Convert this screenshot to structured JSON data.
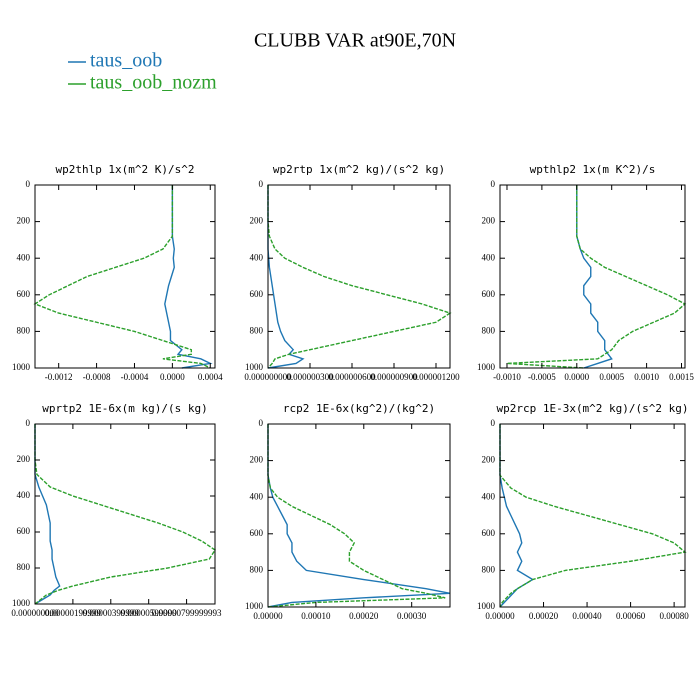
{
  "title": "CLUBB VAR at90E,70N",
  "chart_data": [
    {
      "type": "line",
      "title": "wp2thlp  1x(m^2 K)/s^2",
      "y": [
        0,
        200,
        280,
        350,
        400,
        450,
        500,
        550,
        600,
        650,
        700,
        750,
        800,
        850,
        900,
        925,
        950,
        975,
        1000
      ],
      "ylim": [
        1000,
        0
      ],
      "yticks": [
        0,
        200,
        400,
        600,
        800,
        1000
      ],
      "xlim": [
        -0.00145,
        0.00045
      ],
      "xticks": [
        -0.0012,
        -0.0008,
        -0.0004,
        {
          "value": 0,
          "label": "0.0000"
        },
        0.0004
      ],
      "series": [
        {
          "name": "taus_oob",
          "color": "#1f77b4",
          "values": [
            0,
            0,
            0,
            2e-05,
            1e-05,
            2e-05,
            -1e-05,
            -4e-05,
            -6e-05,
            -8e-05,
            -6e-05,
            -4e-05,
            -2e-05,
            -2e-05,
            0.0001,
            6e-05,
            0.0003,
            0.0004,
            0.0001
          ]
        },
        {
          "name": "taus_oob_nozm",
          "color": "#2ca02c",
          "values": [
            0,
            0,
            0,
            -0.0001,
            -0.0003,
            -0.0006,
            -0.0009,
            -0.0011,
            -0.0013,
            -0.00145,
            -0.0012,
            -0.0008,
            -0.0004,
            -0.0001,
            0.0002,
            0.0002,
            -0.0001,
            0.0003,
            0.0004
          ]
        }
      ]
    },
    {
      "type": "line",
      "title": "wp2rtp  1x(m^2 kg)/(s^2 kg)",
      "y": [
        0,
        200,
        280,
        350,
        400,
        450,
        500,
        550,
        600,
        650,
        700,
        750,
        800,
        850,
        900,
        925,
        950,
        975,
        1000
      ],
      "ylim": [
        1000,
        0
      ],
      "yticks": [
        0,
        200,
        400,
        600,
        800,
        1000
      ],
      "xlim": [
        0,
        1.3e-06
      ],
      "xticks": [
        {
          "value": 0,
          "label": "0.000000000"
        },
        {
          "value": 3e-07,
          "label": "0.000000300"
        },
        {
          "value": 6e-07,
          "label": "0.000000600"
        },
        {
          "value": 9e-07,
          "label": "0.000000900"
        },
        {
          "value": 1.2e-06,
          "label": "0.000001200"
        }
      ],
      "series": [
        {
          "name": "taus_oob",
          "color": "#1f77b4",
          "values": [
            0,
            0,
            0,
            0,
            5e-09,
            1e-08,
            2e-08,
            3e-08,
            4e-08,
            5e-08,
            6e-08,
            7e-08,
            9e-08,
            1.2e-07,
            1.8e-07,
            1.5e-07,
            2.5e-07,
            2e-07,
            0
          ]
        },
        {
          "name": "taus_oob_nozm",
          "color": "#2ca02c",
          "values": [
            0,
            0,
            1e-08,
            5e-08,
            1.2e-07,
            2.5e-07,
            4e-07,
            6e-07,
            8.5e-07,
            1.1e-06,
            1.3e-06,
            1.2e-06,
            9e-07,
            6e-07,
            3e-07,
            1.5e-07,
            5e-08,
            3e-08,
            0
          ]
        }
      ]
    },
    {
      "type": "line",
      "title": "wpthlp2  1x(m K^2)/s",
      "y": [
        0,
        200,
        280,
        350,
        400,
        450,
        500,
        550,
        600,
        650,
        700,
        750,
        800,
        850,
        900,
        925,
        950,
        975,
        1000
      ],
      "ylim": [
        1000,
        0
      ],
      "yticks": [
        0,
        200,
        400,
        600,
        800,
        1000
      ],
      "xlim": [
        -0.0011,
        0.00155
      ],
      "xticks": [
        {
          "value": -0.001,
          "label": "-0.0010"
        },
        -0.0005,
        {
          "value": 0,
          "label": "0.0000"
        },
        0.0005,
        {
          "value": 0.001,
          "label": "0.0010"
        },
        0.0015
      ],
      "series": [
        {
          "name": "taus_oob",
          "color": "#1f77b4",
          "values": [
            0,
            0,
            0,
            5e-05,
            0.0001,
            0.0002,
            0.0002,
            0.0001,
            0.0001,
            0.0002,
            0.0002,
            0.0003,
            0.0003,
            0.0004,
            0.0004,
            0.00045,
            0.0005,
            0.0003,
            0.0001
          ]
        },
        {
          "name": "taus_oob_nozm",
          "color": "#2ca02c",
          "values": [
            0,
            0,
            0,
            5e-05,
            0.0002,
            0.0004,
            0.0007,
            0.001,
            0.0013,
            0.00155,
            0.0014,
            0.0011,
            0.0008,
            0.0006,
            0.0005,
            0.0004,
            0.0003,
            -0.001,
            0.0001
          ]
        }
      ]
    },
    {
      "type": "line",
      "title": "wprtp2  1E-6x(m kg)/(s kg)",
      "y": [
        0,
        200,
        280,
        350,
        400,
        450,
        500,
        550,
        600,
        650,
        700,
        750,
        800,
        850,
        900,
        925,
        950,
        975,
        1000
      ],
      "ylim": [
        1000,
        0
      ],
      "yticks": [
        0,
        200,
        400,
        600,
        800,
        1000
      ],
      "xlim": [
        0,
        9.5e-06
      ],
      "xticks": [
        {
          "value": 0,
          "label": "0.000000000"
        },
        {
          "value": 2e-06,
          "label": "0.00000199999"
        },
        {
          "value": 4e-06,
          "label": "0.00000399999"
        },
        {
          "value": 6e-06,
          "label": "0.00000599999"
        },
        {
          "value": 8e-06,
          "label": "0.00000799999993"
        }
      ],
      "series": [
        {
          "name": "taus_oob",
          "color": "#1f77b4",
          "values": [
            0,
            0,
            0,
            2e-07,
            4e-07,
            6e-07,
            7e-07,
            8e-07,
            8e-07,
            8e-07,
            9e-07,
            9e-07,
            1e-06,
            1.1e-06,
            1.3e-06,
            1e-06,
            8e-07,
            4e-07,
            0
          ]
        },
        {
          "name": "taus_oob_nozm",
          "color": "#2ca02c",
          "values": [
            0,
            0,
            1e-07,
            8e-07,
            2e-06,
            3.5e-06,
            5e-06,
            6.5e-06,
            7.8e-06,
            8.8e-06,
            9.5e-06,
            9.2e-06,
            7e-06,
            4e-06,
            2e-06,
            1.2e-06,
            6e-07,
            3e-07,
            0
          ]
        }
      ]
    },
    {
      "type": "line",
      "title": "rcp2  1E-6x(kg^2)/(kg^2)",
      "y": [
        0,
        200,
        280,
        350,
        400,
        450,
        500,
        550,
        600,
        650,
        700,
        750,
        800,
        850,
        900,
        925,
        950,
        975,
        1000
      ],
      "ylim": [
        1000,
        0
      ],
      "yticks": [
        0,
        200,
        400,
        600,
        800,
        1000
      ],
      "xlim": [
        0,
        0.00038
      ],
      "xticks": [
        {
          "value": 0,
          "label": "0.00000"
        },
        {
          "value": 0.0001,
          "label": "0.00010"
        },
        {
          "value": 0.0002,
          "label": "0.00020"
        },
        {
          "value": 0.0003,
          "label": "0.00030"
        }
      ],
      "series": [
        {
          "name": "taus_oob",
          "color": "#1f77b4",
          "values": [
            0,
            0,
            0,
            5e-06,
            1e-05,
            2e-05,
            3e-05,
            4e-05,
            4e-05,
            5e-05,
            5e-05,
            6e-05,
            8e-05,
            0.0002,
            0.00033,
            0.00038,
            0.0002,
            5e-05,
            0
          ]
        },
        {
          "name": "taus_oob_nozm",
          "color": "#2ca02c",
          "values": [
            0,
            0,
            0,
            5e-06,
            2e-05,
            5e-05,
            9e-05,
            0.00013,
            0.00016,
            0.00018,
            0.00017,
            0.00017,
            0.0002,
            0.00024,
            0.00028,
            0.00033,
            0.00037,
            0.0001,
            0
          ]
        }
      ]
    },
    {
      "type": "line",
      "title": "wp2rcp  1E-3x(m^2 kg)/(s^2 kg)",
      "y": [
        0,
        200,
        280,
        350,
        400,
        450,
        500,
        550,
        600,
        650,
        700,
        750,
        800,
        850,
        900,
        925,
        950,
        975,
        1000
      ],
      "ylim": [
        1000,
        0
      ],
      "yticks": [
        0,
        200,
        400,
        600,
        800,
        1000
      ],
      "xlim": [
        0,
        0.00085
      ],
      "xticks": [
        {
          "value": 0,
          "label": "0.00000"
        },
        {
          "value": 0.0002,
          "label": "0.00020"
        },
        {
          "value": 0.0004,
          "label": "0.00040"
        },
        {
          "value": 0.0006,
          "label": "0.00060"
        },
        {
          "value": 0.0008,
          "label": "0.00080"
        }
      ],
      "series": [
        {
          "name": "taus_oob",
          "color": "#1f77b4",
          "values": [
            0,
            0,
            0,
            1e-05,
            2e-05,
            3e-05,
            5e-05,
            7e-05,
            9e-05,
            0.0001,
            8e-05,
            0.0001,
            8e-05,
            0.00015,
            8e-05,
            6e-05,
            4e-05,
            2e-05,
            0
          ]
        },
        {
          "name": "taus_oob_nozm",
          "color": "#2ca02c",
          "values": [
            0,
            0,
            0,
            5e-05,
            0.00012,
            0.00025,
            0.0004,
            0.00055,
            0.0007,
            0.0008,
            0.00085,
            0.0006,
            0.0003,
            0.00015,
            8e-05,
            5e-05,
            3e-05,
            1e-05,
            0
          ]
        }
      ]
    }
  ]
}
